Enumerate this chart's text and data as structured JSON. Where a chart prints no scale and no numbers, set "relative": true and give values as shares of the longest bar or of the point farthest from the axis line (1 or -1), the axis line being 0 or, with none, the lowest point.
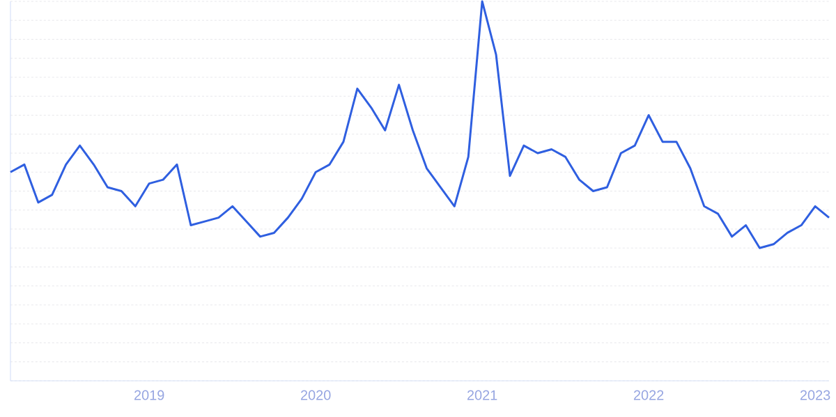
{
  "chart_data": {
    "type": "line",
    "relative": true,
    "grid": "y",
    "marker": "none",
    "line_style": "solid",
    "color": "#2f5fe0",
    "x": [
      "2018-03",
      "2018-04",
      "2018-05",
      "2018-06",
      "2018-07",
      "2018-08",
      "2018-09",
      "2018-10",
      "2018-11",
      "2018-12",
      "2019-01",
      "2019-02",
      "2019-03",
      "2019-04",
      "2019-05",
      "2019-06",
      "2019-07",
      "2019-08",
      "2019-09",
      "2019-10",
      "2019-11",
      "2019-12",
      "2020-01",
      "2020-02",
      "2020-03",
      "2020-04",
      "2020-05",
      "2020-06",
      "2020-07",
      "2020-08",
      "2020-09",
      "2020-10",
      "2020-11",
      "2020-12",
      "2021-01",
      "2021-02",
      "2021-03",
      "2021-04",
      "2021-05",
      "2021-06",
      "2021-07",
      "2021-08",
      "2021-09",
      "2021-10",
      "2021-11",
      "2021-12",
      "2022-01",
      "2022-02",
      "2022-03",
      "2022-04",
      "2022-05",
      "2022-06",
      "2022-07",
      "2022-08",
      "2022-09",
      "2022-10",
      "2022-11",
      "2022-12",
      "2023-01",
      "2023-02"
    ],
    "values": [
      0.55,
      0.57,
      0.47,
      0.49,
      0.57,
      0.62,
      0.57,
      0.51,
      0.5,
      0.46,
      0.52,
      0.53,
      0.57,
      0.41,
      0.42,
      0.43,
      0.46,
      0.42,
      0.38,
      0.39,
      0.43,
      0.48,
      0.55,
      0.57,
      0.63,
      0.77,
      0.72,
      0.66,
      0.78,
      0.66,
      0.56,
      0.51,
      0.46,
      0.59,
      1.0,
      0.86,
      0.54,
      0.62,
      0.6,
      0.61,
      0.59,
      0.53,
      0.5,
      0.51,
      0.6,
      0.62,
      0.7,
      0.63,
      0.63,
      0.56,
      0.46,
      0.44,
      0.38,
      0.41,
      0.35,
      0.36,
      0.39,
      0.41,
      0.46,
      0.43
    ],
    "xlim": [
      "2018-03",
      "2023-02"
    ],
    "xticks": [
      "2019",
      "2020",
      "2021",
      "2022",
      "2023"
    ]
  }
}
